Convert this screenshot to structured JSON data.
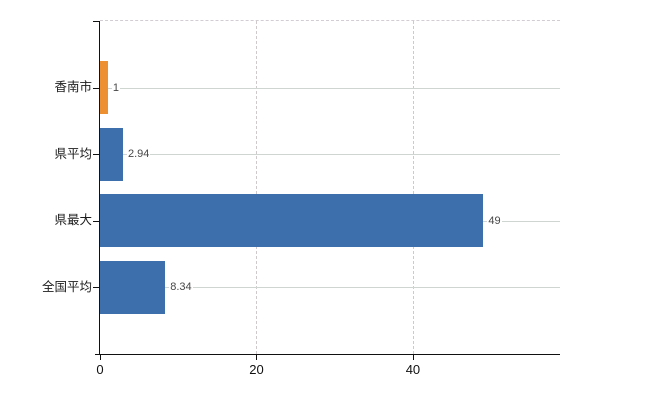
{
  "chart_data": {
    "type": "bar",
    "orientation": "horizontal",
    "title": "",
    "xlabel": "",
    "ylabel": "",
    "categories": [
      "香南市",
      "県平均",
      "県最大",
      "全国平均"
    ],
    "values": [
      1,
      2.94,
      49,
      8.34
    ],
    "value_labels": [
      "1",
      "2.94",
      "49",
      "8.34"
    ],
    "bar_colors": [
      "#ed9031",
      "#3d6fac",
      "#3d6fac",
      "#3d6fac"
    ],
    "xticks": [
      0,
      20,
      40
    ],
    "xtick_labels": [
      "0",
      "20",
      "40"
    ],
    "xlim": [
      0,
      58.8
    ],
    "grid": true,
    "legend": false
  },
  "colors": {
    "accent_orange": "#ed9031",
    "bar_blue": "#3d6fac",
    "gridline_horizontal": "#cfd6d1",
    "gridline_vertical": "#cfc9cc",
    "axis": "#111111",
    "value_text": "#474747",
    "label_text": "#1c1c1c",
    "background": "#ffffff"
  }
}
